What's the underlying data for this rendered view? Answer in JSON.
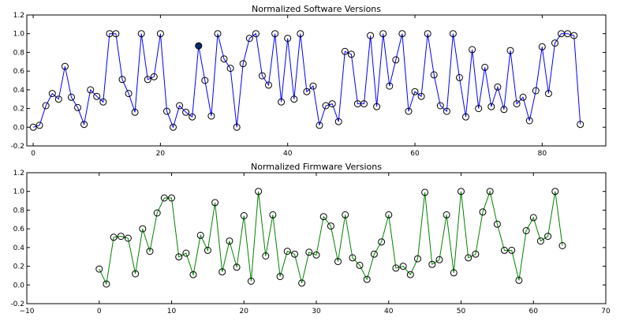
{
  "chart_data": [
    {
      "type": "line",
      "title": "Normalized Software Versions",
      "xlabel": "",
      "ylabel": "",
      "xlim": [
        -1,
        90
      ],
      "ylim": [
        -0.2,
        1.2
      ],
      "xticks": [
        0,
        20,
        40,
        60,
        80
      ],
      "xtick_labels": [
        "0",
        "20",
        "40",
        "60",
        "80"
      ],
      "yticks": [
        -0.2,
        0.0,
        0.2,
        0.4,
        0.6,
        0.8,
        1.0,
        1.2
      ],
      "ytick_labels": [
        "-0.2",
        "0.0",
        "0.2",
        "0.4",
        "0.6",
        "0.8",
        "1.0",
        "1.2"
      ],
      "grid": false,
      "line_color": "#0000ff",
      "marker": "open-circle",
      "highlight": {
        "index": 26,
        "fill": "#0b2a6b"
      },
      "x": [
        0,
        1,
        2,
        3,
        4,
        5,
        6,
        7,
        8,
        9,
        10,
        11,
        12,
        13,
        14,
        15,
        16,
        17,
        18,
        19,
        20,
        21,
        22,
        23,
        24,
        25,
        26,
        27,
        28,
        29,
        30,
        31,
        32,
        33,
        34,
        35,
        36,
        37,
        38,
        39,
        40,
        41,
        42,
        43,
        44,
        45,
        46,
        47,
        48,
        49,
        50,
        51,
        52,
        53,
        54,
        55,
        56,
        57,
        58,
        59,
        60,
        61,
        62,
        63,
        64,
        65,
        66,
        67,
        68,
        69,
        70,
        71,
        72,
        73,
        74,
        75,
        76,
        77,
        78,
        79,
        80,
        81,
        82,
        83,
        84,
        85,
        86
      ],
      "y": [
        0.0,
        0.02,
        0.23,
        0.36,
        0.3,
        0.65,
        0.32,
        0.21,
        0.03,
        0.4,
        0.33,
        0.27,
        1.0,
        1.0,
        0.51,
        0.36,
        0.16,
        1.0,
        0.51,
        0.54,
        1.0,
        0.17,
        0.0,
        0.23,
        0.16,
        0.11,
        0.87,
        0.5,
        0.12,
        1.0,
        0.73,
        0.63,
        0.0,
        0.68,
        0.95,
        1.0,
        0.55,
        0.45,
        1.0,
        0.27,
        0.95,
        0.3,
        1.0,
        0.38,
        0.44,
        0.02,
        0.23,
        0.25,
        0.06,
        0.81,
        0.78,
        0.25,
        0.25,
        0.98,
        0.22,
        1.0,
        0.44,
        0.72,
        1.0,
        0.17,
        0.38,
        0.33,
        1.0,
        0.56,
        0.23,
        0.17,
        1.0,
        0.53,
        0.11,
        0.83,
        0.2,
        0.64,
        0.22,
        0.43,
        0.19,
        0.82,
        0.25,
        0.32,
        0.07,
        0.39,
        0.86,
        0.36,
        0.9,
        1.0,
        1.0,
        0.98,
        0.03
      ]
    },
    {
      "type": "line",
      "title": "Normalized Firmware Versions",
      "xlabel": "",
      "ylabel": "",
      "xlim": [
        -10,
        70
      ],
      "ylim": [
        -0.2,
        1.2
      ],
      "xticks": [
        -10,
        0,
        10,
        20,
        30,
        40,
        50,
        60,
        70
      ],
      "xtick_labels": [
        "−10",
        "0",
        "10",
        "20",
        "30",
        "40",
        "50",
        "60",
        "70"
      ],
      "yticks": [
        -0.2,
        0.0,
        0.2,
        0.4,
        0.6,
        0.8,
        1.0,
        1.2
      ],
      "ytick_labels": [
        "-0.2",
        "0.0",
        "0.2",
        "0.4",
        "0.6",
        "0.8",
        "1.0",
        "1.2"
      ],
      "grid": false,
      "line_color": "#008000",
      "marker": "open-circle",
      "x": [
        0,
        1,
        2,
        3,
        4,
        5,
        6,
        7,
        8,
        9,
        10,
        11,
        12,
        13,
        14,
        15,
        16,
        17,
        18,
        19,
        20,
        21,
        22,
        23,
        24,
        25,
        26,
        27,
        28,
        29,
        30,
        31,
        32,
        33,
        34,
        35,
        36,
        37,
        38,
        39,
        40,
        41,
        42,
        43,
        44,
        45,
        46,
        47,
        48,
        49,
        50,
        51,
        52,
        53,
        54,
        55,
        56,
        57,
        58,
        59,
        60,
        61,
        62,
        63,
        64
      ],
      "y": [
        0.17,
        0.01,
        0.51,
        0.52,
        0.5,
        0.12,
        0.6,
        0.36,
        0.77,
        0.93,
        0.93,
        0.3,
        0.34,
        0.11,
        0.53,
        0.37,
        0.88,
        0.14,
        0.47,
        0.19,
        0.74,
        0.04,
        1.0,
        0.31,
        0.75,
        0.09,
        0.36,
        0.33,
        0.02,
        0.35,
        0.32,
        0.73,
        0.63,
        0.25,
        0.75,
        0.29,
        0.21,
        0.06,
        0.33,
        0.46,
        0.75,
        0.18,
        0.2,
        0.11,
        0.28,
        0.99,
        0.22,
        0.27,
        0.75,
        0.13,
        1.0,
        0.29,
        0.33,
        0.78,
        1.0,
        0.65,
        0.37,
        0.37,
        0.05,
        0.58,
        0.72,
        0.47,
        0.52,
        1.0,
        0.42
      ]
    }
  ]
}
